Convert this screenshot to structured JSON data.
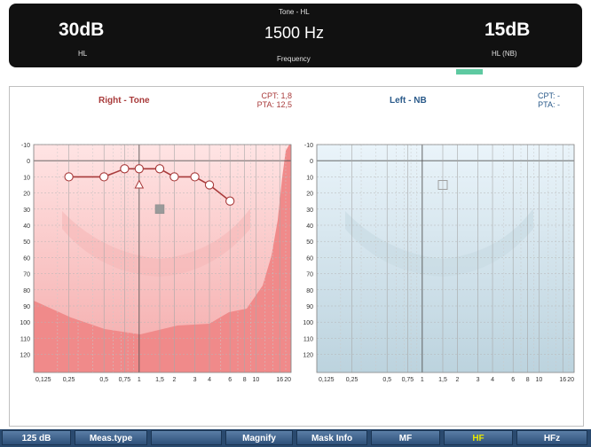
{
  "header": {
    "mode_label": "Tone - HL",
    "left_level": "30dB",
    "left_unit": "HL",
    "frequency": "1500 Hz",
    "frequency_label": "Frequency",
    "right_level": "15dB",
    "right_unit": "HL (NB)"
  },
  "right_panel": {
    "title": "Right - Tone",
    "cpt": "CPT: 1,8",
    "pta": "PTA: 12,5",
    "color": "#a83a3a"
  },
  "left_panel": {
    "title": "Left - NB",
    "cpt": "CPT:  -",
    "pta": "PTA:  -",
    "color": "#2a5a8a"
  },
  "axis": {
    "y_ticks": [
      "-10",
      "0",
      "10",
      "20",
      "30",
      "40",
      "50",
      "60",
      "70",
      "80",
      "90",
      "100",
      "110",
      "120"
    ],
    "x_ticks": [
      "0,125",
      "0,25",
      "0,5",
      "0,75",
      "1",
      "1,5",
      "2",
      "3",
      "4",
      "6",
      "8",
      "10",
      "16",
      "20"
    ]
  },
  "chart_data": {
    "type": "scatter",
    "title": "",
    "xlabel": "",
    "ylabel": "",
    "x_unit": "kHz",
    "y_unit": "dB HL",
    "ylim": [
      -10,
      125
    ],
    "y_inverted": true,
    "x_scale": "log",
    "xlim": [
      0.125,
      20
    ],
    "series": [
      {
        "name": "",
        "ear": "right",
        "marker": "circle",
        "connected": true,
        "x": [
          0.25,
          0.5,
          0.75,
          1,
          1.5,
          2,
          3,
          4,
          6
        ],
        "y": [
          10,
          10,
          5,
          5,
          5,
          10,
          10,
          15,
          25
        ]
      },
      {
        "name": "",
        "ear": "right",
        "marker": "triangle",
        "connected": false,
        "x": [
          1
        ],
        "y": [
          15
        ]
      },
      {
        "name": "",
        "ear": "right",
        "marker": "filled-square",
        "connected": false,
        "x": [
          1.5
        ],
        "y": [
          30
        ]
      },
      {
        "name": "",
        "ear": "left",
        "marker": "square",
        "connected": false,
        "x": [
          1.5
        ],
        "y": [
          15
        ]
      }
    ]
  },
  "toolbar": {
    "items": [
      {
        "label": "125 dB",
        "active": false
      },
      {
        "label": "Meas.type",
        "active": false
      },
      {
        "label": "",
        "active": false
      },
      {
        "label": "Magnify",
        "active": false
      },
      {
        "label": "Mask Info",
        "active": false
      },
      {
        "label": "MF",
        "active": false
      },
      {
        "label": "HF",
        "active": true
      },
      {
        "label": "HFz",
        "active": false
      }
    ]
  }
}
